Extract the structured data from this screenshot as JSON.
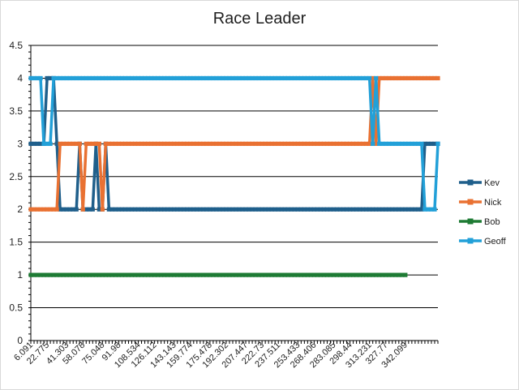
{
  "chart_data": {
    "type": "line",
    "title": "Race Leader",
    "xlabel": "",
    "ylabel": "",
    "ylim": [
      0,
      4.5
    ],
    "yticks": [
      "0",
      "0.5",
      "1",
      "1.5",
      "2",
      "2.5",
      "3",
      "3.5",
      "4",
      "4.5"
    ],
    "x_tick_labels": [
      "6.091",
      "22.775",
      "41.303",
      "58.078",
      "75.048",
      "91.98",
      "108.534",
      "126.112",
      "143.143",
      "159.774",
      "175.478",
      "192.302",
      "207.447",
      "222.73",
      "237.511",
      "253.433",
      "268.406",
      "283.085",
      "298.44",
      "313.231",
      "327.77",
      "342.099"
    ],
    "num_points": 126,
    "grid": "horizontal",
    "legend": "right",
    "series": [
      {
        "name": "Kev",
        "color": "#1f5f8b",
        "segments": [
          [
            0,
            3
          ],
          [
            4,
            3
          ],
          [
            5,
            4
          ],
          [
            7,
            4
          ],
          [
            8,
            3
          ],
          [
            9,
            2
          ],
          [
            14,
            2
          ],
          [
            15,
            3
          ],
          [
            16,
            2
          ],
          [
            19,
            2
          ],
          [
            20,
            3
          ],
          [
            21,
            2
          ],
          [
            22,
            2
          ],
          [
            23,
            3
          ],
          [
            24,
            2
          ],
          [
            120,
            2
          ],
          [
            121,
            3
          ],
          [
            125,
            3
          ]
        ]
      },
      {
        "name": "Nick",
        "color": "#e97132",
        "segments": [
          [
            0,
            2
          ],
          [
            8,
            2
          ],
          [
            9,
            3
          ],
          [
            15,
            3
          ],
          [
            16,
            2
          ],
          [
            17,
            3
          ],
          [
            21,
            3
          ],
          [
            22,
            2
          ],
          [
            23,
            3
          ],
          [
            104,
            3
          ],
          [
            105,
            4
          ],
          [
            106,
            3
          ],
          [
            107,
            4
          ],
          [
            125,
            4
          ]
        ]
      },
      {
        "name": "Bob",
        "color": "#1e7b34",
        "segments": [
          [
            0,
            1
          ],
          [
            115,
            1
          ]
        ]
      },
      {
        "name": "Geoff",
        "color": "#22a0d8",
        "segments": [
          [
            0,
            4
          ],
          [
            3,
            4
          ],
          [
            4,
            3
          ],
          [
            6,
            3
          ],
          [
            7,
            4
          ],
          [
            104,
            4
          ],
          [
            105,
            3
          ],
          [
            106,
            4
          ],
          [
            107,
            3
          ],
          [
            120,
            3
          ],
          [
            121,
            2
          ],
          [
            124,
            2
          ],
          [
            125,
            3
          ]
        ]
      }
    ]
  }
}
